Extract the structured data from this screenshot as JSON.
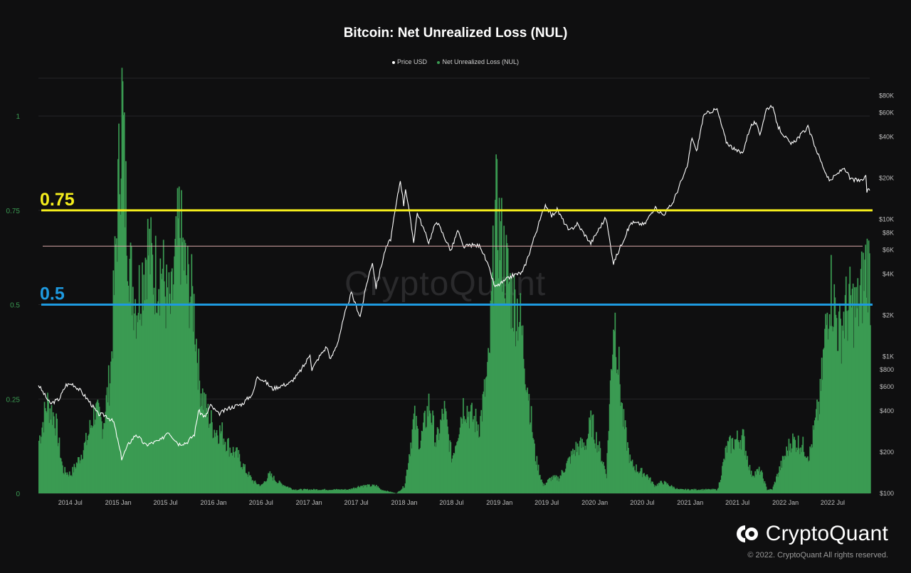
{
  "chart_data": {
    "type": "bar",
    "title": "Bitcoin: Net Unrealized Loss (NUL)",
    "legend_position": "top-center",
    "grid": true,
    "x_ticks": [
      "2014 Jul",
      "2015 Jan",
      "2015 Jul",
      "2016 Jan",
      "2016 Jul",
      "2017 Jan",
      "2017 Jul",
      "2018 Jan",
      "2018 Jul",
      "2019 Jan",
      "2019 Jul",
      "2020 Jan",
      "2020 Jul",
      "2021 Jan",
      "2021 Jul",
      "2022 Jan",
      "2022 Jul"
    ],
    "x_range": [
      "2014-03-01",
      "2022-11-20"
    ],
    "left_axis": {
      "ticks": [
        0,
        0.25,
        0.5,
        0.75,
        1
      ],
      "tick_labels": [
        "0",
        "0.25",
        "0.5",
        "0.75",
        "1"
      ],
      "range": [
        0,
        1.1
      ]
    },
    "right_axis": {
      "scale": "log",
      "range": [
        100,
        100000
      ],
      "ticks": [
        100,
        200,
        400,
        600,
        800,
        1000,
        2000,
        4000,
        6000,
        8000,
        10000,
        20000,
        40000,
        60000,
        80000
      ],
      "tick_labels": [
        "$100",
        "$200",
        "$400",
        "$600",
        "$800",
        "$1K",
        "$2K",
        "$4K",
        "$6K",
        "$8K",
        "$10K",
        "$20K",
        "$40K",
        "$60K",
        "$80K"
      ]
    },
    "series": [
      {
        "name": "Price USD",
        "kind": "line",
        "axis": "right",
        "color": "#ffffff",
        "points": [
          [
            "2014-03-01",
            620
          ],
          [
            "2014-04-15",
            450
          ],
          [
            "2014-05-20",
            490
          ],
          [
            "2014-06-15",
            620
          ],
          [
            "2014-07-10",
            630
          ],
          [
            "2014-08-10",
            560
          ],
          [
            "2014-09-15",
            460
          ],
          [
            "2014-10-15",
            380
          ],
          [
            "2014-11-15",
            370
          ],
          [
            "2014-12-15",
            330
          ],
          [
            "2015-01-14",
            180
          ],
          [
            "2015-02-10",
            230
          ],
          [
            "2015-03-10",
            270
          ],
          [
            "2015-04-15",
            225
          ],
          [
            "2015-05-15",
            235
          ],
          [
            "2015-06-15",
            245
          ],
          [
            "2015-07-10",
            285
          ],
          [
            "2015-08-20",
            230
          ],
          [
            "2015-09-20",
            235
          ],
          [
            "2015-10-20",
            270
          ],
          [
            "2015-11-04",
            400
          ],
          [
            "2015-12-01",
            360
          ],
          [
            "2015-12-20",
            440
          ],
          [
            "2016-01-20",
            380
          ],
          [
            "2016-03-01",
            420
          ],
          [
            "2016-04-20",
            450
          ],
          [
            "2016-06-01",
            540
          ],
          [
            "2016-06-17",
            720
          ],
          [
            "2016-07-15",
            660
          ],
          [
            "2016-08-15",
            580
          ],
          [
            "2016-09-15",
            610
          ],
          [
            "2016-10-20",
            640
          ],
          [
            "2016-11-20",
            740
          ],
          [
            "2016-12-20",
            900
          ],
          [
            "2017-01-05",
            1050
          ],
          [
            "2017-01-12",
            800
          ],
          [
            "2017-02-10",
            1000
          ],
          [
            "2017-03-10",
            1180
          ],
          [
            "2017-03-25",
            950
          ],
          [
            "2017-04-20",
            1250
          ],
          [
            "2017-05-20",
            2100
          ],
          [
            "2017-06-12",
            2900
          ],
          [
            "2017-07-16",
            1950
          ],
          [
            "2017-08-10",
            3400
          ],
          [
            "2017-09-01",
            4900
          ],
          [
            "2017-09-15",
            3200
          ],
          [
            "2017-10-20",
            6000
          ],
          [
            "2017-11-10",
            7200
          ],
          [
            "2017-12-07",
            15000
          ],
          [
            "2017-12-17",
            19500
          ],
          [
            "2017-12-30",
            12800
          ],
          [
            "2018-01-06",
            17000
          ],
          [
            "2018-02-06",
            6900
          ],
          [
            "2018-02-20",
            11200
          ],
          [
            "2018-04-05",
            6800
          ],
          [
            "2018-05-05",
            9800
          ],
          [
            "2018-06-29",
            5900
          ],
          [
            "2018-07-25",
            8300
          ],
          [
            "2018-08-15",
            6300
          ],
          [
            "2018-09-15",
            6500
          ],
          [
            "2018-10-20",
            6400
          ],
          [
            "2018-11-20",
            4500
          ],
          [
            "2018-12-15",
            3200
          ],
          [
            "2019-01-20",
            3550
          ],
          [
            "2019-02-20",
            3900
          ],
          [
            "2019-03-30",
            4100
          ],
          [
            "2019-04-20",
            5300
          ],
          [
            "2019-05-20",
            8000
          ],
          [
            "2019-06-26",
            12900
          ],
          [
            "2019-07-20",
            10600
          ],
          [
            "2019-08-10",
            11800
          ],
          [
            "2019-09-25",
            8200
          ],
          [
            "2019-10-26",
            9300
          ],
          [
            "2019-12-17",
            6700
          ],
          [
            "2020-01-20",
            8700
          ],
          [
            "2020-02-13",
            10300
          ],
          [
            "2020-03-13",
            4800
          ],
          [
            "2020-04-20",
            7100
          ],
          [
            "2020-05-20",
            9500
          ],
          [
            "2020-07-10",
            9200
          ],
          [
            "2020-08-17",
            12200
          ],
          [
            "2020-09-20",
            10800
          ],
          [
            "2020-10-25",
            13100
          ],
          [
            "2020-11-25",
            18500
          ],
          [
            "2020-12-20",
            23800
          ],
          [
            "2021-01-08",
            40000
          ],
          [
            "2021-01-25",
            31000
          ],
          [
            "2021-02-20",
            56000
          ],
          [
            "2021-03-13",
            61000
          ],
          [
            "2021-04-14",
            63500
          ],
          [
            "2021-05-19",
            37000
          ],
          [
            "2021-06-22",
            32000
          ],
          [
            "2021-07-20",
            30500
          ],
          [
            "2021-08-20",
            48000
          ],
          [
            "2021-09-07",
            51000
          ],
          [
            "2021-09-25",
            42000
          ],
          [
            "2021-10-20",
            64000
          ],
          [
            "2021-11-10",
            68000
          ],
          [
            "2021-12-05",
            47000
          ],
          [
            "2022-01-22",
            35000
          ],
          [
            "2022-03-28",
            47000
          ],
          [
            "2022-05-12",
            28000
          ],
          [
            "2022-06-18",
            19000
          ],
          [
            "2022-07-25",
            22000
          ],
          [
            "2022-08-15",
            24000
          ],
          [
            "2022-09-05",
            19800
          ],
          [
            "2022-10-20",
            19000
          ],
          [
            "2022-11-05",
            21000
          ],
          [
            "2022-11-09",
            16000
          ],
          [
            "2022-11-20",
            16300
          ]
        ]
      },
      {
        "name": "Net Unrealized Loss (NUL)",
        "kind": "bars",
        "axis": "left",
        "color": "#3a9b52",
        "points": [
          [
            "2014-03-01",
            0.14
          ],
          [
            "2014-04-01",
            0.24
          ],
          [
            "2014-05-01",
            0.2
          ],
          [
            "2014-06-01",
            0.06
          ],
          [
            "2014-07-01",
            0.05
          ],
          [
            "2014-08-01",
            0.09
          ],
          [
            "2014-09-01",
            0.14
          ],
          [
            "2014-10-01",
            0.22
          ],
          [
            "2014-11-01",
            0.18
          ],
          [
            "2014-12-01",
            0.32
          ],
          [
            "2015-01-14",
            1.05
          ],
          [
            "2015-01-25",
            0.8
          ],
          [
            "2015-02-15",
            0.58
          ],
          [
            "2015-03-10",
            0.5
          ],
          [
            "2015-04-01",
            0.58
          ],
          [
            "2015-04-20",
            0.66
          ],
          [
            "2015-05-15",
            0.58
          ],
          [
            "2015-06-15",
            0.6
          ],
          [
            "2015-07-01",
            0.52
          ],
          [
            "2015-07-20",
            0.48
          ],
          [
            "2015-08-20",
            0.71
          ],
          [
            "2015-09-15",
            0.58
          ],
          [
            "2015-10-15",
            0.5
          ],
          [
            "2015-11-05",
            0.3
          ],
          [
            "2015-12-01",
            0.22
          ],
          [
            "2016-01-01",
            0.17
          ],
          [
            "2016-02-01",
            0.16
          ],
          [
            "2016-03-01",
            0.12
          ],
          [
            "2016-04-01",
            0.1
          ],
          [
            "2016-05-01",
            0.06
          ],
          [
            "2016-06-01",
            0.03
          ],
          [
            "2016-07-01",
            0.02
          ],
          [
            "2016-08-01",
            0.05
          ],
          [
            "2016-09-01",
            0.03
          ],
          [
            "2016-10-01",
            0.02
          ],
          [
            "2016-11-01",
            0.01
          ],
          [
            "2016-12-01",
            0.01
          ],
          [
            "2017-01-12",
            0.01
          ],
          [
            "2017-03-01",
            0.01
          ],
          [
            "2017-04-01",
            0.01
          ],
          [
            "2017-06-01",
            0.01
          ],
          [
            "2017-07-16",
            0.02
          ],
          [
            "2017-09-15",
            0.02
          ],
          [
            "2017-10-01",
            0.01
          ],
          [
            "2017-12-01",
            0.0
          ],
          [
            "2018-01-01",
            0.02
          ],
          [
            "2018-02-06",
            0.2
          ],
          [
            "2018-03-01",
            0.13
          ],
          [
            "2018-04-05",
            0.24
          ],
          [
            "2018-05-01",
            0.13
          ],
          [
            "2018-06-01",
            0.22
          ],
          [
            "2018-07-01",
            0.09
          ],
          [
            "2018-08-15",
            0.24
          ],
          [
            "2018-09-15",
            0.2
          ],
          [
            "2018-10-15",
            0.18
          ],
          [
            "2018-11-20",
            0.34
          ],
          [
            "2018-12-15",
            0.75
          ],
          [
            "2019-01-15",
            0.63
          ],
          [
            "2019-02-15",
            0.52
          ],
          [
            "2019-03-15",
            0.48
          ],
          [
            "2019-04-15",
            0.3
          ],
          [
            "2019-05-15",
            0.1
          ],
          [
            "2019-06-15",
            0.02
          ],
          [
            "2019-07-15",
            0.04
          ],
          [
            "2019-08-15",
            0.04
          ],
          [
            "2019-09-25",
            0.09
          ],
          [
            "2019-10-20",
            0.12
          ],
          [
            "2019-11-25",
            0.13
          ],
          [
            "2019-12-17",
            0.19
          ],
          [
            "2020-01-15",
            0.12
          ],
          [
            "2020-02-13",
            0.05
          ],
          [
            "2020-03-13",
            0.49
          ],
          [
            "2020-04-15",
            0.2
          ],
          [
            "2020-05-15",
            0.08
          ],
          [
            "2020-06-15",
            0.06
          ],
          [
            "2020-07-15",
            0.05
          ],
          [
            "2020-08-15",
            0.02
          ],
          [
            "2020-09-15",
            0.03
          ],
          [
            "2020-10-15",
            0.02
          ],
          [
            "2020-11-15",
            0.01
          ],
          [
            "2020-12-15",
            0.01
          ],
          [
            "2021-01-15",
            0.01
          ],
          [
            "2021-02-15",
            0.01
          ],
          [
            "2021-03-15",
            0.01
          ],
          [
            "2021-04-15",
            0.01
          ],
          [
            "2021-05-19",
            0.12
          ],
          [
            "2021-06-22",
            0.14
          ],
          [
            "2021-07-20",
            0.15
          ],
          [
            "2021-08-20",
            0.05
          ],
          [
            "2021-09-25",
            0.06
          ],
          [
            "2021-10-20",
            0.01
          ],
          [
            "2021-11-10",
            0.01
          ],
          [
            "2021-12-05",
            0.06
          ],
          [
            "2022-01-22",
            0.14
          ],
          [
            "2022-03-01",
            0.13
          ],
          [
            "2022-04-01",
            0.1
          ],
          [
            "2022-05-12",
            0.25
          ],
          [
            "2022-06-18",
            0.56
          ],
          [
            "2022-07-25",
            0.42
          ],
          [
            "2022-08-15",
            0.48
          ],
          [
            "2022-09-05",
            0.5
          ],
          [
            "2022-10-01",
            0.48
          ],
          [
            "2022-11-09",
            0.62
          ],
          [
            "2022-11-20",
            0.56
          ]
        ]
      }
    ],
    "reference_lines": [
      {
        "value": 0.75,
        "label": "0.75",
        "color": "#f5ee1c"
      },
      {
        "value": 0.5,
        "label": "0.5",
        "color": "#1e9ae0"
      },
      {
        "value": 0.655,
        "label": "",
        "color": "#d9a9a9"
      }
    ]
  },
  "watermark": "CryptoQuant",
  "brand": {
    "name": "CryptoQuant",
    "copyright": "© 2022. CryptoQuant All rights reserved."
  }
}
